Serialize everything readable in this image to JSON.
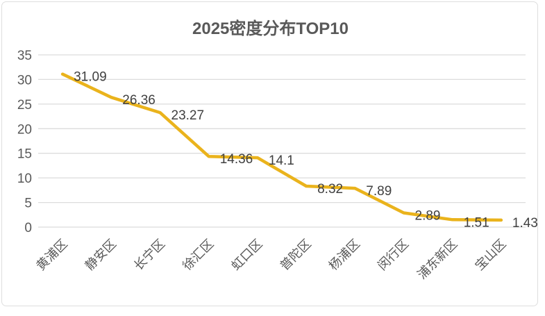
{
  "title": "2025密度分布TOP10",
  "chart_data": {
    "type": "line",
    "title": "2025密度分布TOP10",
    "categories": [
      "黄浦区",
      "静安区",
      "长宁区",
      "徐汇区",
      "虹口区",
      "普陀区",
      "杨浦区",
      "闵行区",
      "浦东新区",
      "宝山区"
    ],
    "values": [
      31.09,
      26.36,
      23.27,
      14.36,
      14.1,
      8.32,
      7.89,
      2.89,
      1.51,
      1.43
    ],
    "data_labels": [
      "31.09",
      "26.36",
      "23.27",
      "14.36",
      "14.1",
      "8.32",
      "7.89",
      "2.89",
      "1.51",
      "1.43"
    ],
    "xlabel": "",
    "ylabel": "",
    "ylim": [
      0,
      35
    ],
    "yticks": [
      0,
      5,
      10,
      15,
      20,
      25,
      30,
      35
    ],
    "grid": true,
    "legend": "none",
    "x_label_rotation_deg": -45,
    "colors": {
      "line": "#EAB31C",
      "data_label": "#404040",
      "axis_label": "#595959",
      "gridline": "#DCDCDC",
      "title": "#595959",
      "frame_border": "#DEDEDE",
      "background": "#FFFFFF"
    }
  }
}
